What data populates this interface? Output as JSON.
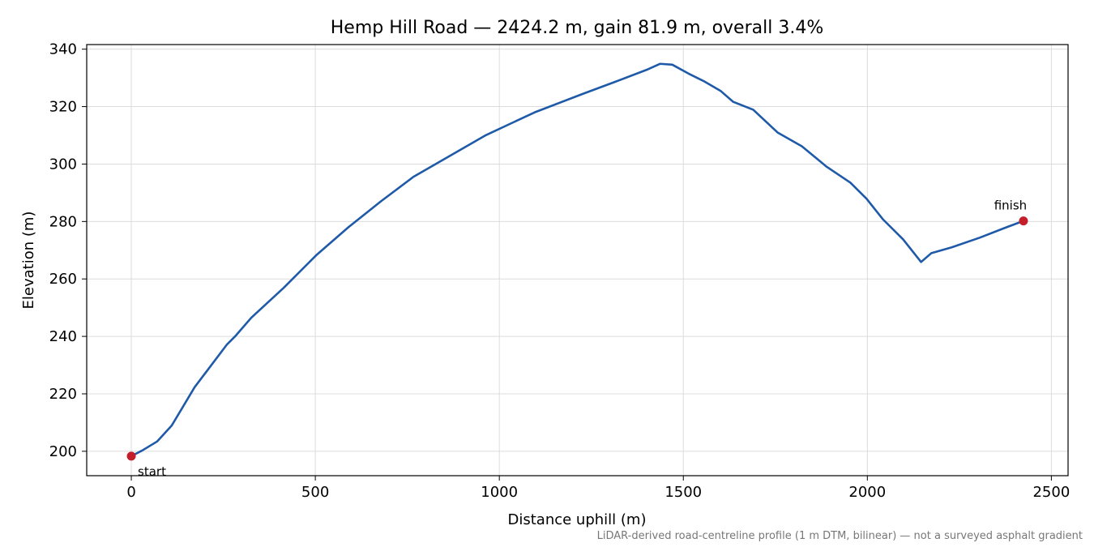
{
  "chart_data": {
    "type": "line",
    "title": "Hemp Hill Road — 2424.2 m, gain 81.9 m, overall 3.4%",
    "xlabel": "Distance uphill (m)",
    "ylabel": "Elevation (m)",
    "footnote": "LiDAR-derived road-centreline profile (1 m DTM, bilinear) — not a surveyed asphalt gradient",
    "x": [
      0,
      30,
      70,
      110,
      172,
      260,
      282,
      326,
      414,
      502,
      590,
      678,
      766,
      854,
      964,
      1096,
      1228,
      1316,
      1404,
      1437,
      1470,
      1514,
      1558,
      1602,
      1635,
      1690,
      1756,
      1822,
      1888,
      1954,
      1998,
      2042,
      2097,
      2146,
      2174,
      2229,
      2306,
      2372,
      2424.2
    ],
    "series": [
      {
        "name": "Elevation",
        "color": "#1f5aa8",
        "values": [
          198.3,
          200.3,
          203.4,
          209,
          222.3,
          237.2,
          240,
          246.5,
          256.9,
          268.2,
          278,
          287,
          295.5,
          302,
          310.1,
          318,
          324.5,
          328.7,
          333,
          334.9,
          334.6,
          331.5,
          328.7,
          325.4,
          321.7,
          318.9,
          311,
          306.2,
          299.2,
          293.5,
          287.9,
          280.8,
          273.8,
          265.9,
          269,
          271,
          274.4,
          277.7,
          280.2
        ]
      }
    ],
    "endpoint_color": "#c41e2a",
    "annotations": [
      {
        "text": "start"
      },
      {
        "text": "finish"
      }
    ],
    "xlim": [
      -121.2,
      2545.4
    ],
    "ylim": [
      191.5,
      341.6
    ],
    "xticks": [
      0,
      500,
      1000,
      1500,
      2000,
      2500
    ],
    "yticks": [
      200,
      220,
      240,
      260,
      280,
      300,
      320,
      340
    ],
    "grid": true
  }
}
